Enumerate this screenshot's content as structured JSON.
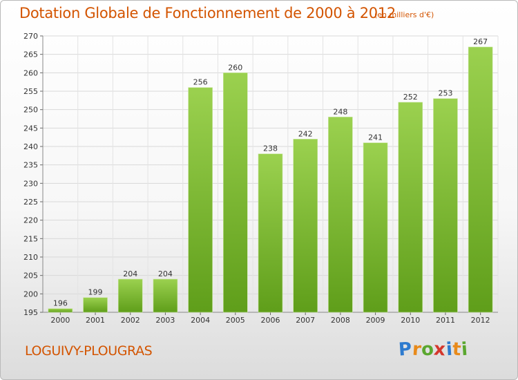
{
  "title": "Dotation Globale de Fonctionnement de 2000 à 2012",
  "unit_note": "(en milliers d'€)",
  "place": "LOGUIVY-PLOUGRAS",
  "logo": {
    "letters": [
      "P",
      "r",
      "o",
      "x",
      "i",
      "t",
      "i"
    ],
    "colors": [
      "#2e7bcf",
      "#e88a1a",
      "#5aa72f",
      "#d4372c",
      "#2e7bcf",
      "#e88a1a",
      "#5aa72f"
    ]
  },
  "colors": {
    "accent": "#d35400",
    "bar_top": "#9bd14f",
    "bar_bottom": "#5f9e1a"
  },
  "chart_data": {
    "type": "bar",
    "title": "Dotation Globale de Fonctionnement de 2000 à 2012",
    "categories": [
      "2000",
      "2001",
      "2002",
      "2003",
      "2004",
      "2005",
      "2006",
      "2007",
      "2008",
      "2009",
      "2010",
      "2011",
      "2012"
    ],
    "values": [
      196,
      199,
      204,
      204,
      256,
      260,
      238,
      242,
      248,
      241,
      252,
      253,
      267
    ],
    "xlabel": "",
    "ylabel": "",
    "ylim": [
      195,
      270
    ],
    "yticks": [
      195,
      200,
      205,
      210,
      215,
      220,
      225,
      230,
      235,
      240,
      245,
      250,
      255,
      260,
      265,
      270
    ],
    "grid": true,
    "legend": "none"
  }
}
